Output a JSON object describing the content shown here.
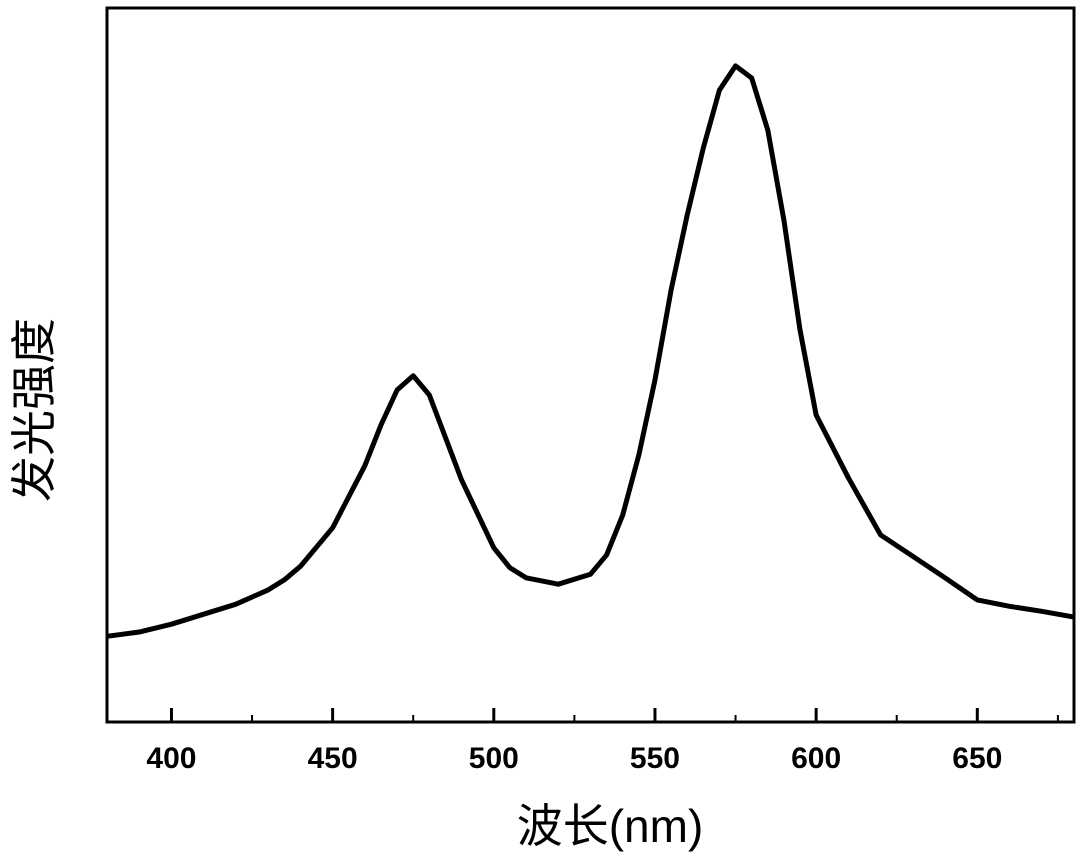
{
  "chart_data": {
    "type": "line",
    "xlabel": "波长(nm)",
    "ylabel": "发光强度",
    "xlim": [
      380,
      680
    ],
    "ylim": [
      0,
      100
    ],
    "xticks": [
      400,
      450,
      500,
      550,
      600,
      650
    ],
    "xminorticks": [
      425,
      475,
      525,
      575,
      625,
      675
    ],
    "series": [
      {
        "color": "#000000",
        "x": [
          380,
          390,
          400,
          410,
          420,
          430,
          435,
          440,
          450,
          460,
          465,
          470,
          475,
          480,
          490,
          500,
          505,
          510,
          520,
          530,
          535,
          540,
          545,
          550,
          555,
          560,
          565,
          570,
          575,
          580,
          585,
          590,
          595,
          600,
          610,
          620,
          630,
          640,
          650,
          660,
          670,
          680
        ],
        "values": [
          12.0,
          12.6,
          13.7,
          15.1,
          16.5,
          18.5,
          19.9,
          21.8,
          27.2,
          35.9,
          41.6,
          46.5,
          48.5,
          45.8,
          33.9,
          24.4,
          21.6,
          20.2,
          19.3,
          20.7,
          23.4,
          29.0,
          37.4,
          47.9,
          60.5,
          71.0,
          80.4,
          88.5,
          91.9,
          90.2,
          82.9,
          70.3,
          54.9,
          43.0,
          34.2,
          26.2,
          23.2,
          20.2,
          17.1,
          16.2,
          15.5,
          14.7
        ]
      }
    ]
  }
}
